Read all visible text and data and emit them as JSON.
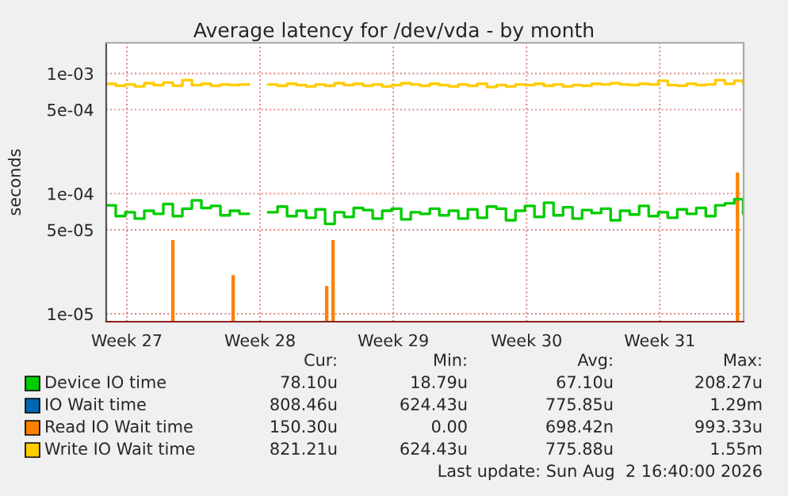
{
  "chart_data": {
    "type": "step",
    "title": "Average latency for /dev/vda - by month",
    "ylabel": "seconds",
    "log": "y",
    "grid": true,
    "legend": "bottom",
    "xlim": [
      "2026-06-30T05:00",
      "2026-08-02T16:40"
    ],
    "xticks": [
      {
        "value": "2026-07-01T07:00",
        "label": "Week 27"
      },
      {
        "value": "2026-07-08T07:00",
        "label": "Week 28"
      },
      {
        "value": "2026-07-15T07:00",
        "label": "Week 29"
      },
      {
        "value": "2026-07-22T07:00",
        "label": "Week 30"
      },
      {
        "value": "2026-07-29T07:00",
        "label": "Week 31"
      }
    ],
    "ylim": [
      8.6e-06,
      0.0018
    ],
    "yticks": [
      {
        "value": 1e-05,
        "label": "1e-05"
      },
      {
        "value": 5e-05,
        "label": "5e-05"
      },
      {
        "value": 0.0001,
        "label": "1e-04"
      },
      {
        "value": 0.0005,
        "label": "5e-04"
      },
      {
        "value": 0.001,
        "label": "1e-03"
      }
    ],
    "x": [
      "2026-06-30T05:00",
      "2026-06-30T17:00",
      "2026-07-01T05:00",
      "2026-07-01T17:00",
      "2026-07-02T05:00",
      "2026-07-02T17:00",
      "2026-07-03T05:00",
      "2026-07-03T17:00",
      "2026-07-04T05:00",
      "2026-07-04T17:00",
      "2026-07-05T05:00",
      "2026-07-05T17:00",
      "2026-07-06T05:00",
      "2026-07-06T17:00",
      "2026-07-07T05:00",
      "2026-07-07T17:00",
      "2026-07-08T05:00",
      "2026-07-08T17:00",
      "2026-07-09T05:00",
      "2026-07-09T17:00",
      "2026-07-10T05:00",
      "2026-07-10T17:00",
      "2026-07-11T05:00",
      "2026-07-11T17:00",
      "2026-07-12T05:00",
      "2026-07-12T17:00",
      "2026-07-13T05:00",
      "2026-07-13T17:00",
      "2026-07-14T05:00",
      "2026-07-14T17:00",
      "2026-07-15T05:00",
      "2026-07-15T17:00",
      "2026-07-16T05:00",
      "2026-07-16T17:00",
      "2026-07-17T05:00",
      "2026-07-17T17:00",
      "2026-07-18T05:00",
      "2026-07-18T17:00",
      "2026-07-19T05:00",
      "2026-07-19T17:00",
      "2026-07-20T05:00",
      "2026-07-20T17:00",
      "2026-07-21T05:00",
      "2026-07-21T17:00",
      "2026-07-22T05:00",
      "2026-07-22T17:00",
      "2026-07-23T05:00",
      "2026-07-23T17:00",
      "2026-07-24T05:00",
      "2026-07-24T17:00",
      "2026-07-25T05:00",
      "2026-07-25T17:00",
      "2026-07-26T05:00",
      "2026-07-26T17:00",
      "2026-07-27T05:00",
      "2026-07-27T17:00",
      "2026-07-28T05:00",
      "2026-07-28T17:00",
      "2026-07-29T05:00",
      "2026-07-29T17:00",
      "2026-07-30T05:00",
      "2026-07-30T17:00",
      "2026-07-31T05:00",
      "2026-07-31T17:00",
      "2026-08-01T05:00",
      "2026-08-01T17:00",
      "2026-08-02T05:00",
      "2026-08-02T16:00"
    ],
    "series": [
      {
        "name": "Device IO time",
        "color": "#00cc00",
        "values": [
          8e-05,
          6.5e-05,
          7e-05,
          6.2e-05,
          7.2e-05,
          6.8e-05,
          8.2e-05,
          6.5e-05,
          7.5e-05,
          8.8e-05,
          7.6e-05,
          7.9e-05,
          6.6e-05,
          7.2e-05,
          6.8e-05,
          null,
          null,
          7e-05,
          7.8e-05,
          6.5e-05,
          7.2e-05,
          6.3e-05,
          7.4e-05,
          5.6e-05,
          7e-05,
          6.4e-05,
          7.6e-05,
          7.3e-05,
          6.2e-05,
          7.2e-05,
          7.5e-05,
          6.1e-05,
          7e-05,
          6.8e-05,
          7.5e-05,
          6.6e-05,
          7.2e-05,
          6.2e-05,
          7.4e-05,
          6.3e-05,
          7.8e-05,
          7.5e-05,
          6e-05,
          7.2e-05,
          7.9e-05,
          6.4e-05,
          8.4e-05,
          6.6e-05,
          7.7e-05,
          6.2e-05,
          7.3e-05,
          6.9e-05,
          7.5e-05,
          6e-05,
          7.2e-05,
          6.7e-05,
          7.9e-05,
          6.5e-05,
          7e-05,
          6.3e-05,
          7.4e-05,
          6.8e-05,
          7.6e-05,
          6.5e-05,
          8e-05,
          8.3e-05,
          9e-05,
          6.8e-05
        ]
      },
      {
        "name": "IO Wait time",
        "color": "#0066b3",
        "values": [
          null,
          null,
          null,
          null,
          null,
          null,
          null,
          null,
          null,
          null,
          null,
          null,
          null,
          null,
          null,
          null,
          null,
          null,
          null,
          null,
          null,
          null,
          null,
          null,
          null,
          null,
          null,
          null,
          null,
          null,
          null,
          null,
          null,
          null,
          null,
          null,
          null,
          null,
          null,
          null,
          null,
          null,
          null,
          null,
          null,
          null,
          null,
          null,
          null,
          null,
          null,
          null,
          null,
          null,
          null,
          null,
          null,
          null,
          null,
          null,
          null,
          null,
          null,
          null,
          null,
          null,
          null,
          null
        ]
      },
      {
        "name": "Read IO Wait time",
        "color": "#ff8000",
        "type": "bar",
        "x": [
          "2026-07-03T17:00",
          "2026-07-06T21:00",
          "2026-07-11T19:00",
          "2026-07-12T03:00",
          "2026-08-02T09:00"
        ],
        "values": [
          4.1e-05,
          2.1e-05,
          1.7e-05,
          4.1e-05,
          0.00015
        ]
      },
      {
        "name": "Write IO Wait time",
        "color": "#ffcc00",
        "values": [
          0.00082,
          0.00079,
          0.00081,
          0.00078,
          0.00083,
          0.0008,
          0.00084,
          0.00079,
          0.00088,
          0.0008,
          0.00082,
          0.00079,
          0.00081,
          0.0008,
          0.00081,
          null,
          null,
          0.00081,
          0.00079,
          0.00082,
          0.0008,
          0.00078,
          0.00081,
          0.00079,
          0.00083,
          0.0008,
          0.00082,
          0.00079,
          0.00081,
          0.00078,
          0.0008,
          0.00083,
          0.00081,
          0.00079,
          0.00082,
          0.0008,
          0.00078,
          0.00081,
          0.00079,
          0.00082,
          0.00077,
          0.0008,
          0.00078,
          0.00081,
          0.0008,
          0.00082,
          0.00079,
          0.00081,
          0.00078,
          0.0008,
          0.00079,
          0.00082,
          0.00081,
          0.00083,
          0.00081,
          0.0008,
          0.00082,
          0.00081,
          0.00087,
          0.0008,
          0.00079,
          0.00082,
          0.0008,
          0.00081,
          0.00088,
          0.00082,
          0.00087,
          0.00082
        ]
      }
    ],
    "annotations": [
      "Cur:",
      "Min:",
      "Avg:",
      "Max:",
      "78.10u",
      "18.79u",
      "67.10u",
      "208.27u",
      "808.46u",
      "624.43u",
      "775.85u",
      "1.29m",
      "150.30u",
      "0.00",
      "698.42n",
      "993.33u",
      "821.21u",
      "624.43u",
      "775.88u",
      "1.55m",
      "Last update: Sun Aug  2 16:40:00 2026"
    ]
  }
}
